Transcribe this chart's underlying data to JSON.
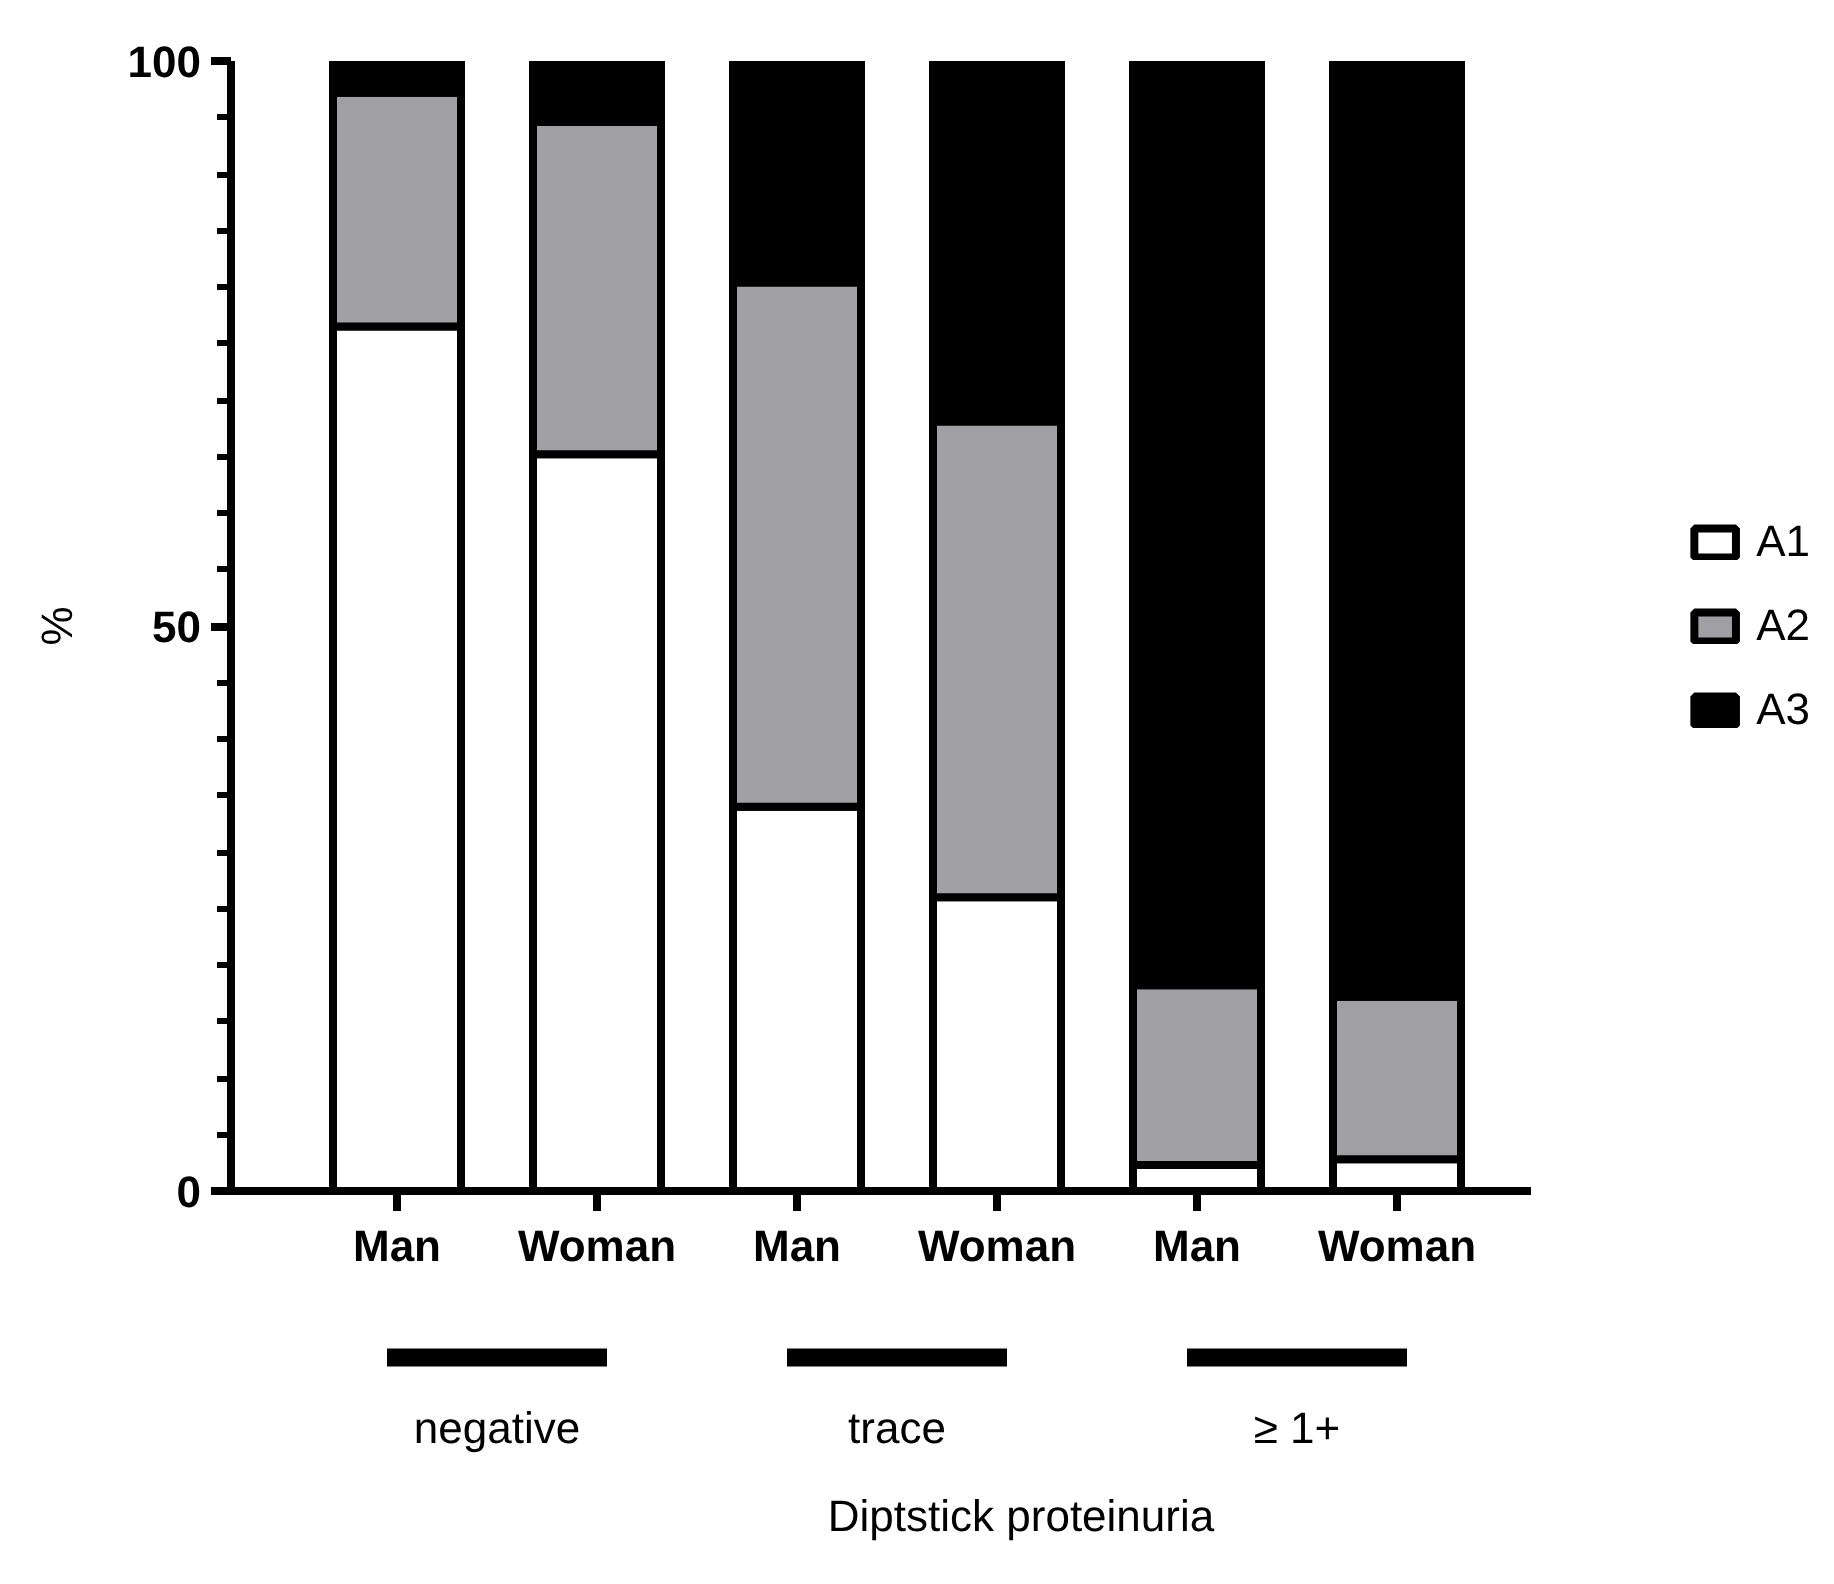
{
  "chart_data": {
    "type": "bar",
    "stacked": true,
    "xlabel": "Diptstick proteinuria",
    "ylabel": "%",
    "categories": [
      "Man",
      "Woman",
      "Man",
      "Woman",
      "Man",
      "Woman"
    ],
    "series": [
      {
        "name": "A1",
        "color": "#ffffff",
        "values": [
          76.5,
          65.2,
          34.0,
          26.0,
          2.3,
          2.8
        ]
      },
      {
        "name": "A2",
        "color": "#a0a0a4",
        "values": [
          20.7,
          29.4,
          46.4,
          42.1,
          15.9,
          14.4
        ]
      },
      {
        "name": "A3",
        "color": "#000000",
        "values": [
          2.8,
          5.4,
          19.6,
          31.9,
          81.8,
          82.8
        ]
      }
    ],
    "ylim": [
      0,
      100
    ],
    "yticks": [
      0,
      {
        "value": 5,
        "label": null
      },
      {
        "value": 10,
        "label": null
      },
      {
        "value": 15,
        "label": null
      },
      {
        "value": 20,
        "label": null
      },
      {
        "value": 25,
        "label": null
      },
      {
        "value": 30,
        "label": null
      },
      {
        "value": 35,
        "label": null
      },
      {
        "value": 40,
        "label": null
      },
      {
        "value": 45,
        "label": null
      },
      50,
      {
        "value": 55,
        "label": null
      },
      {
        "value": 60,
        "label": null
      },
      {
        "value": 65,
        "label": null
      },
      {
        "value": 70,
        "label": null
      },
      {
        "value": 75,
        "label": null
      },
      {
        "value": 80,
        "label": null
      },
      {
        "value": 85,
        "label": null
      },
      {
        "value": 90,
        "label": null
      },
      {
        "value": 95,
        "label": null
      },
      100
    ],
    "annotations": [
      "negative",
      "trace",
      "≥ 1+"
    ],
    "legend": "right",
    "grid": false
  }
}
